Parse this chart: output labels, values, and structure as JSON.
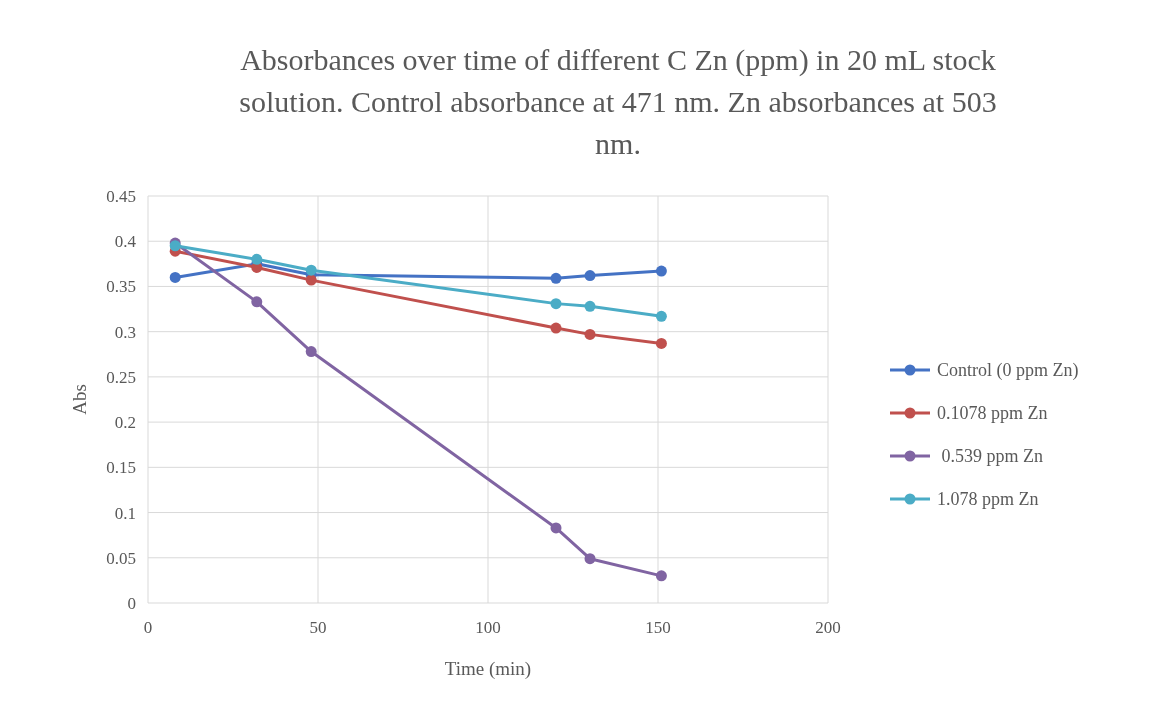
{
  "chart_data": {
    "type": "line",
    "title": "Absorbances over time of different C Zn (ppm) in 20 mL stock solution. Control absorbance at 471 nm. Zn absorbances at 503 nm.",
    "xlabel": "Time (min)",
    "ylabel": "Abs",
    "x": [
      8,
      32,
      48,
      120,
      130,
      151
    ],
    "series": [
      {
        "name": "Control (0 ppm Zn)",
        "color": "#4472c4",
        "values": [
          0.36,
          0.375,
          0.363,
          0.359,
          0.362,
          0.367
        ]
      },
      {
        "name": "0.1078 ppm Zn",
        "color": "#c0504d",
        "values": [
          0.389,
          0.371,
          0.357,
          0.304,
          0.297,
          0.287
        ]
      },
      {
        "name": " 0.539 ppm Zn",
        "color": "#8064a2",
        "values": [
          0.398,
          0.333,
          0.278,
          0.083,
          0.049,
          0.03
        ]
      },
      {
        "name": "1.078 ppm Zn",
        "color": "#4bacc6",
        "values": [
          0.395,
          0.38,
          0.368,
          0.331,
          0.328,
          0.317
        ]
      }
    ],
    "xlim": [
      0,
      200
    ],
    "xticks": [
      0,
      50,
      100,
      150,
      200
    ],
    "ylim": [
      0,
      0.45
    ],
    "yticks": [
      0,
      0.05,
      0.1,
      0.15,
      0.2,
      0.25,
      0.3,
      0.35,
      0.4,
      0.45
    ],
    "grid": true,
    "legend": "right",
    "marker": "circle",
    "line_style": "solid"
  }
}
